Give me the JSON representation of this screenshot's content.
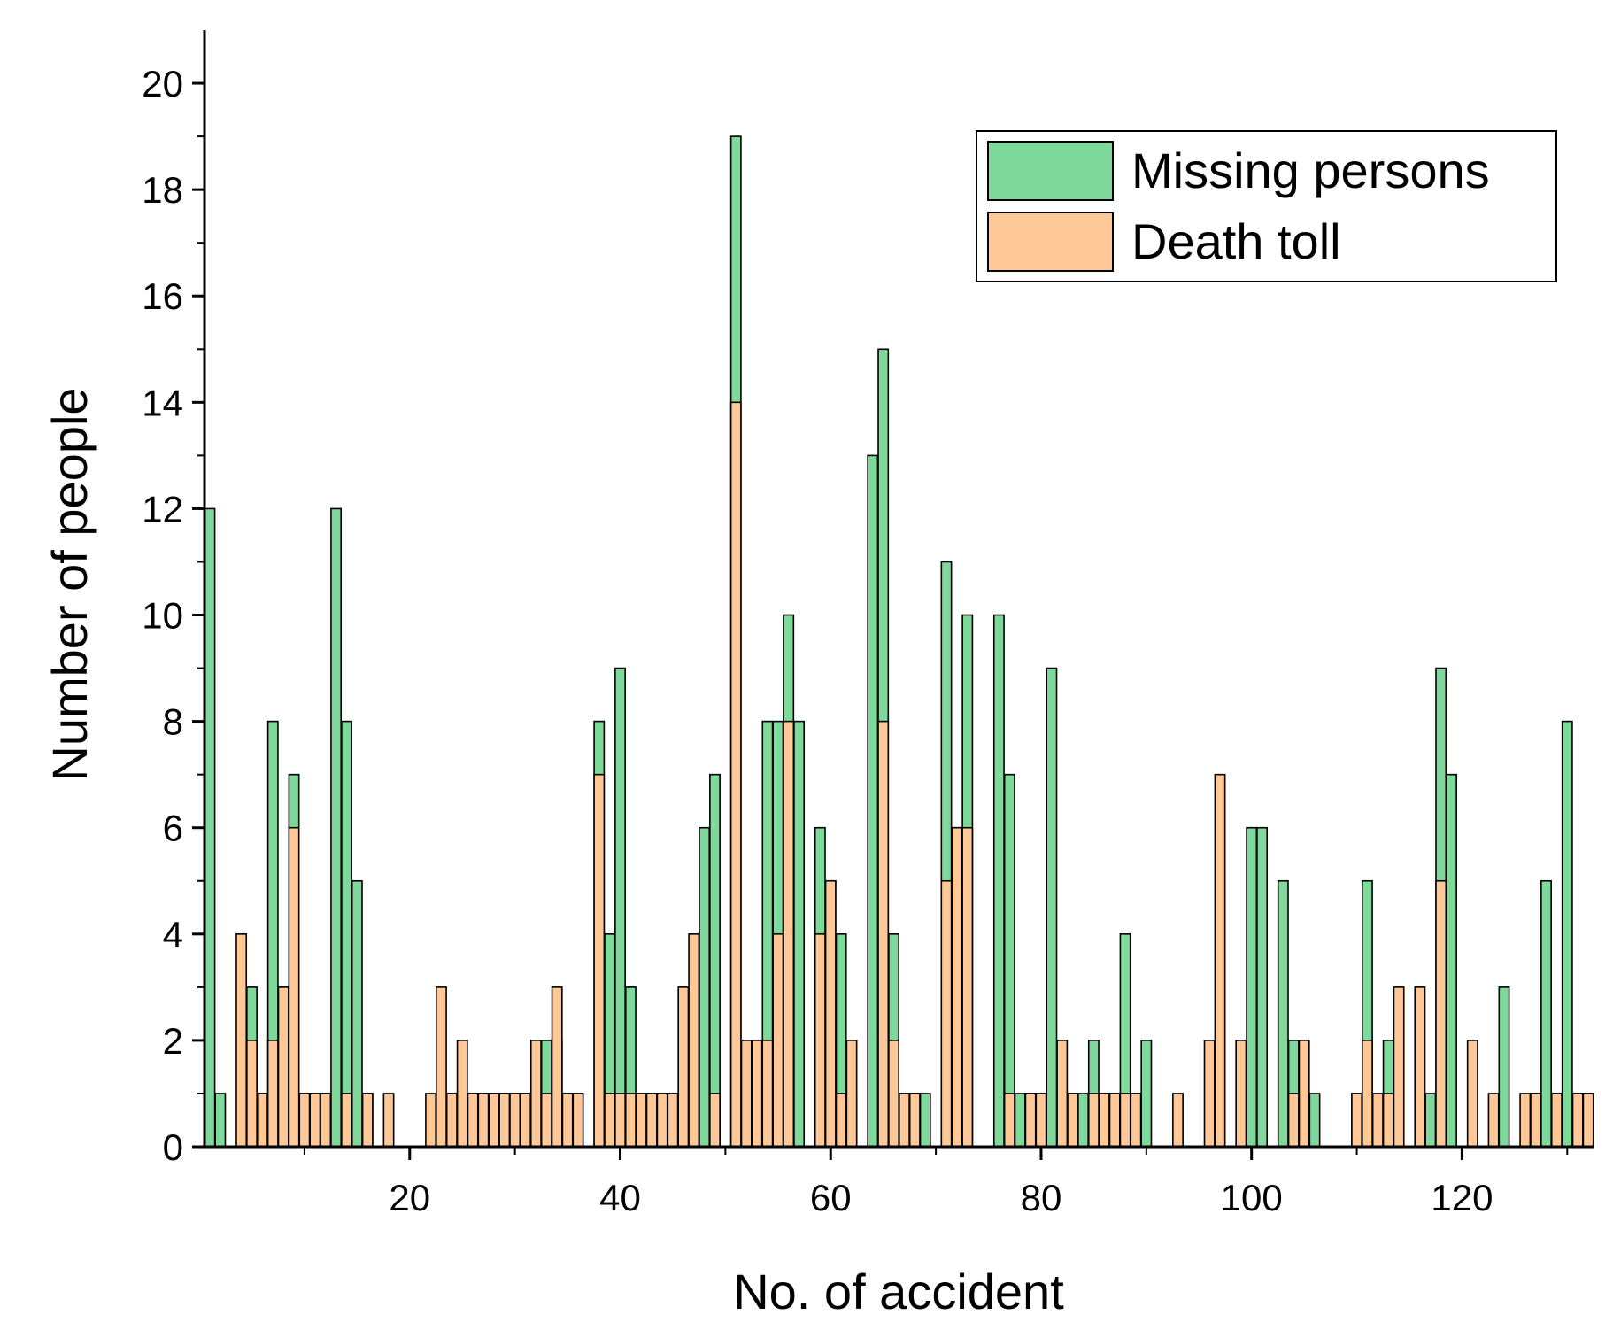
{
  "chart_data": {
    "type": "bar",
    "xlabel": "No. of accident",
    "ylabel": "Number of people",
    "xlim": [
      0.5,
      132.5
    ],
    "ylim": [
      0,
      21
    ],
    "x_ticks": [
      20,
      40,
      60,
      80,
      100,
      120
    ],
    "y_ticks": [
      0,
      2,
      4,
      6,
      8,
      10,
      12,
      14,
      16,
      18,
      20
    ],
    "x": [
      1,
      2,
      3,
      4,
      5,
      6,
      7,
      8,
      9,
      10,
      11,
      12,
      13,
      14,
      15,
      16,
      17,
      18,
      19,
      20,
      21,
      22,
      23,
      24,
      25,
      26,
      27,
      28,
      29,
      30,
      31,
      32,
      33,
      34,
      35,
      36,
      37,
      38,
      39,
      40,
      41,
      42,
      43,
      44,
      45,
      46,
      47,
      48,
      49,
      50,
      51,
      52,
      53,
      54,
      55,
      56,
      57,
      58,
      59,
      60,
      61,
      62,
      63,
      64,
      65,
      66,
      67,
      68,
      69,
      70,
      71,
      72,
      73,
      74,
      75,
      76,
      77,
      78,
      79,
      80,
      81,
      82,
      83,
      84,
      85,
      86,
      87,
      88,
      89,
      90,
      91,
      92,
      93,
      94,
      95,
      96,
      97,
      98,
      99,
      100,
      101,
      102,
      103,
      104,
      105,
      106,
      107,
      108,
      109,
      110,
      111,
      112,
      113,
      114,
      115,
      116,
      117,
      118,
      119,
      120,
      121,
      122,
      123,
      124,
      125,
      126,
      127,
      128,
      129,
      130,
      131,
      132
    ],
    "legend_position": "top-right",
    "series": [
      {
        "name": "Missing persons",
        "color": "#7fd99a",
        "values": [
          12,
          1,
          0,
          0,
          3,
          1,
          8,
          3,
          7,
          1,
          1,
          1,
          12,
          8,
          5,
          1,
          0,
          0,
          0,
          0,
          0,
          0,
          1,
          1,
          1,
          1,
          1,
          1,
          1,
          1,
          1,
          1,
          2,
          2,
          1,
          1,
          0,
          8,
          4,
          9,
          3,
          1,
          1,
          1,
          1,
          1,
          1,
          6,
          7,
          0,
          19,
          2,
          2,
          8,
          8,
          10,
          8,
          0,
          6,
          5,
          4,
          1,
          0,
          13,
          15,
          4,
          1,
          1,
          1,
          0,
          11,
          6,
          10,
          0,
          0,
          10,
          7,
          1,
          1,
          1,
          9,
          1,
          1,
          1,
          2,
          1,
          1,
          4,
          1,
          2,
          0,
          0,
          0,
          0,
          0,
          0,
          0,
          0,
          0,
          6,
          6,
          0,
          5,
          2,
          2,
          1,
          0,
          0,
          0,
          1,
          5,
          0,
          2,
          0,
          0,
          0,
          1,
          9,
          7,
          0,
          0,
          0,
          0,
          3,
          0,
          0,
          1,
          5,
          1,
          8,
          1,
          1
        ],
        "color_name": "green"
      },
      {
        "name": "Death toll",
        "color": "#ffc896",
        "values": [
          0,
          0,
          0,
          4,
          2,
          1,
          2,
          3,
          6,
          1,
          1,
          1,
          0,
          1,
          0,
          1,
          0,
          1,
          0,
          0,
          0,
          1,
          3,
          1,
          2,
          1,
          1,
          1,
          1,
          1,
          1,
          2,
          1,
          3,
          1,
          1,
          0,
          7,
          1,
          1,
          1,
          1,
          1,
          1,
          1,
          3,
          4,
          0,
          1,
          0,
          14,
          2,
          2,
          2,
          4,
          8,
          0,
          0,
          4,
          5,
          1,
          2,
          0,
          0,
          8,
          2,
          1,
          1,
          0,
          0,
          5,
          6,
          6,
          0,
          0,
          0,
          1,
          0,
          1,
          1,
          0,
          2,
          1,
          0,
          1,
          1,
          1,
          1,
          1,
          0,
          0,
          0,
          1,
          0,
          0,
          2,
          7,
          0,
          2,
          0,
          0,
          0,
          0,
          1,
          2,
          0,
          0,
          0,
          0,
          1,
          2,
          1,
          1,
          3,
          0,
          3,
          0,
          5,
          0,
          0,
          2,
          0,
          1,
          0,
          0,
          1,
          1,
          0,
          1,
          0,
          1,
          1
        ],
        "color_name": "orange"
      }
    ]
  }
}
